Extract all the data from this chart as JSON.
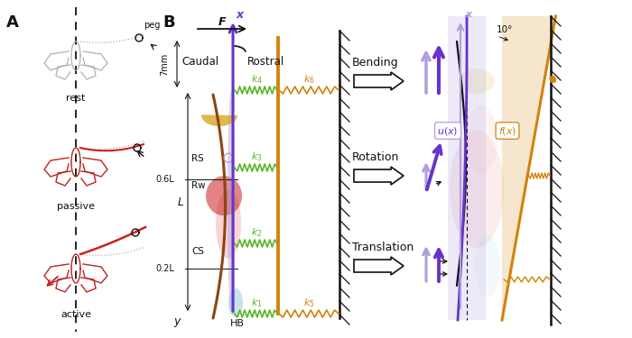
{
  "fig_width": 7.0,
  "fig_height": 3.75,
  "bg_color": "#ffffff",
  "panel_A": "A",
  "panel_B": "B",
  "rest": "rest",
  "passive": "passive",
  "active": "active",
  "peg": "peg",
  "bending": "Bending",
  "rotation": "Rotation",
  "translation": "Translation",
  "caudal": "Caudal",
  "rostral": "Rostral",
  "F": "F",
  "x": "x",
  "y": "y",
  "HB": "HB",
  "RS": "RS",
  "Rw": "Rw",
  "CS": "CS",
  "mm7": "7mm",
  "L": "L",
  "06L": "0.6L",
  "02L": "0.2L",
  "ux": "$u(x)$",
  "fx": "$f(x)$",
  "deg10": "10°",
  "green": "#5ab526",
  "orange": "#d4820a",
  "purple_dark": "#6633cc",
  "purple_light": "#b09edf",
  "gray": "#b0b0b0",
  "red": "#cc2020",
  "black": "#111111",
  "brown": "#8B4513",
  "yellow": "#d4a017",
  "pink": "#f4a0a0",
  "blue_light": "#99ccdd"
}
